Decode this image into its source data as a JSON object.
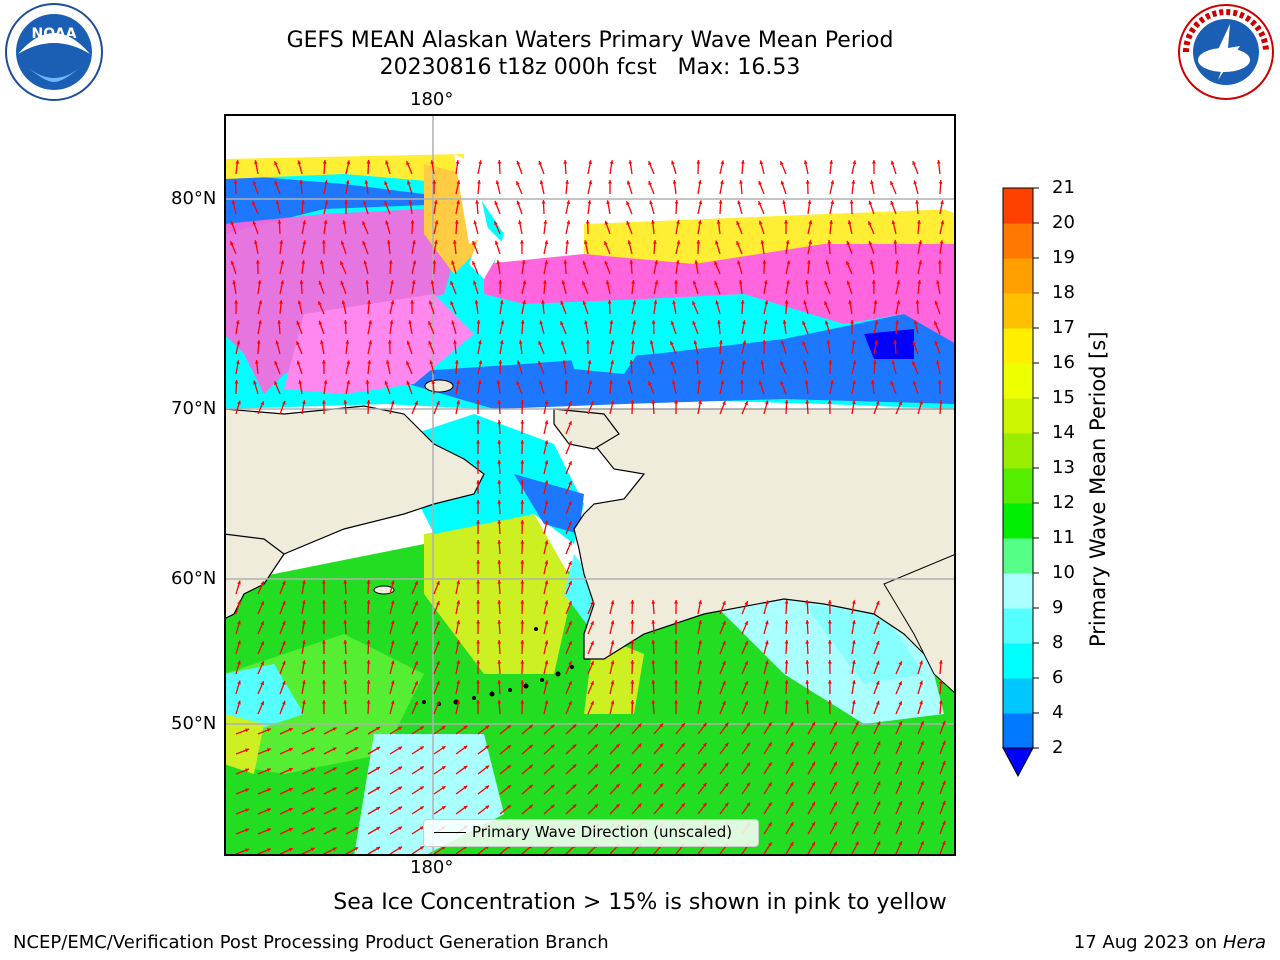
{
  "title_line1": "GEFS MEAN Alaskan Waters Primary Wave Mean Period",
  "title_line2": "20230816 t18z 000h fcst   Max: 16.53",
  "lon_label": "180°",
  "lat_labels": [
    "80°N",
    "70°N",
    "60°N",
    "50°N"
  ],
  "legend_label": "Primary Wave Direction (unscaled)",
  "colorbar": {
    "label": "Primary Wave Mean Period [s]",
    "ticks": [
      "2",
      "4",
      "6",
      "8",
      "9",
      "10",
      "11",
      "12",
      "13",
      "14",
      "15",
      "16",
      "17",
      "18",
      "19",
      "20",
      "21"
    ],
    "colors": [
      "#0078ff",
      "#00c8ff",
      "#00ffff",
      "#55ffff",
      "#aaffff",
      "#55ff88",
      "#00ee00",
      "#55ee00",
      "#99ee00",
      "#ccf500",
      "#eeff00",
      "#ffee00",
      "#ffc000",
      "#ffa000",
      "#ff7800",
      "#ff4000",
      "#ff0000"
    ],
    "under_color": "#0000ff"
  },
  "caption": "Sea Ice Concentration > 15% is shown in pink to yellow",
  "footer_left": "NCEP/EMC/Verification Post Processing Product Generation Branch",
  "footer_date": "17 Aug 2023 on",
  "footer_machine": "Hera",
  "logos": {
    "left": "NOAA",
    "right": "NATIONAL WEATHER SERVICE"
  },
  "colors": {
    "land": "#efecdc",
    "arrow": "#ff0000",
    "ice_pink": "#ff66dd",
    "ice_yellow": "#ffee33"
  }
}
